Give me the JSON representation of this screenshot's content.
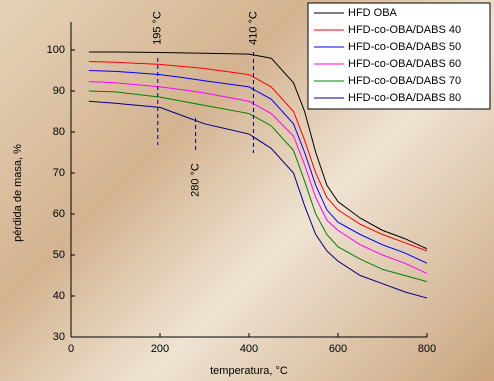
{
  "chart_data": {
    "type": "line",
    "xlabel": "temperatura, °C",
    "ylabel": "pérdida de masa, %",
    "x": [
      40,
      100,
      200,
      250,
      300,
      400,
      450,
      500,
      525,
      550,
      575,
      600,
      650,
      700,
      750,
      800
    ],
    "series": [
      {
        "name": "HFD OBA",
        "color": "#000000",
        "values": [
          99.5,
          99.5,
          99.4,
          99.3,
          99.2,
          99,
          98,
          92,
          85,
          75,
          67,
          63,
          59,
          56,
          54,
          51.5
        ]
      },
      {
        "name": "HFD-co-OBA/DABS 40",
        "color": "#ff0000",
        "values": [
          97.2,
          97,
          96.5,
          96,
          95.5,
          94,
          91,
          85,
          78,
          70,
          64,
          61,
          57.5,
          55,
          53,
          51
        ]
      },
      {
        "name": "HFD-co-OBA/DABS 50",
        "color": "#0000ff",
        "values": [
          95,
          94.8,
          94,
          93.3,
          92.5,
          91,
          88,
          82,
          75,
          67,
          61,
          58,
          55,
          52.5,
          50.5,
          48
        ]
      },
      {
        "name": "HFD-co-OBA/DABS 60",
        "color": "#ff00ff",
        "values": [
          92.3,
          92,
          91,
          90.3,
          89.5,
          87.5,
          84.5,
          79,
          72,
          64,
          58.5,
          56,
          52.5,
          50,
          48,
          45.5
        ]
      },
      {
        "name": "HFD-co-OBA/DABS 70",
        "color": "#008000",
        "values": [
          90,
          89.8,
          88.5,
          87.5,
          86.5,
          84.5,
          81.5,
          75.5,
          68,
          60,
          55,
          52,
          49,
          46.5,
          45,
          43.5
        ]
      },
      {
        "name": "HFD-co-OBA/DABS 80",
        "color": "#000080",
        "values": [
          87.5,
          87,
          86,
          84,
          82,
          79.5,
          76,
          70,
          62,
          55,
          51,
          48.5,
          45,
          43,
          41,
          39.5
        ]
      }
    ],
    "xlim": [
      0,
      800
    ],
    "xticks": [
      0,
      200,
      400,
      600,
      800
    ],
    "ylim": [
      30,
      100
    ],
    "yticks": [
      30,
      40,
      50,
      60,
      70,
      80,
      90,
      100
    ],
    "annotations": [
      {
        "value": 195,
        "label": "195 °C"
      },
      {
        "value": 280,
        "label": "280 °C"
      },
      {
        "value": 410,
        "label": "410 °C"
      }
    ],
    "legend": "upper right"
  }
}
